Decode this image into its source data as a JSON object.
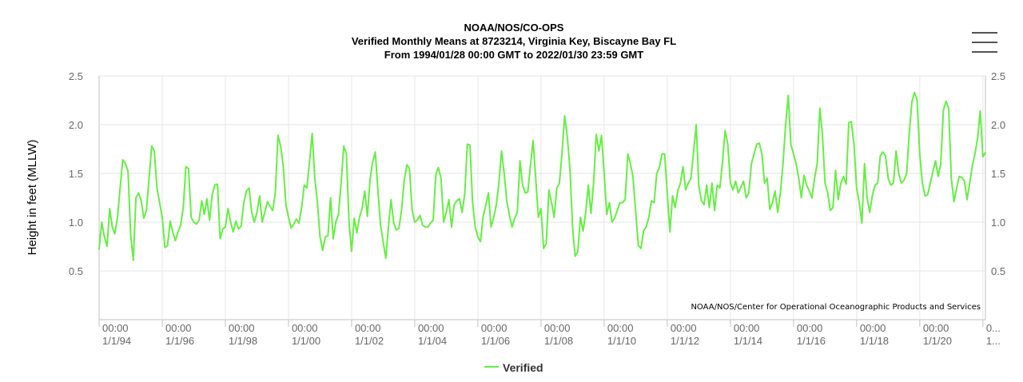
{
  "chart_data": {
    "type": "line",
    "title_lines": [
      "NOAA/NOS/CO-OPS",
      "Verified Monthly Means at 8723214, Virginia Key, Biscayne Bay FL",
      "From 1994/01/28 00:00 GMT to 2022/01/30 23:59 GMT"
    ],
    "ylabel": "Height in feet (MLLW)",
    "ylim": [
      0,
      2.5
    ],
    "yticks": [
      0.5,
      1.0,
      1.5,
      2.0,
      2.5
    ],
    "ytick_labels": [
      "0.5",
      "1.0",
      "1.5",
      "2.0",
      "2.5"
    ],
    "xlim": [
      1994,
      2022.08
    ],
    "xticks": [
      1994,
      1996,
      1998,
      2000,
      2002,
      2004,
      2006,
      2008,
      2010,
      2012,
      2014,
      2016,
      2018,
      2020,
      2022
    ],
    "xtick_labels": [
      [
        "00:00",
        "1/1/94"
      ],
      [
        "00:00",
        "1/1/96"
      ],
      [
        "00:00",
        "1/1/98"
      ],
      [
        "00:00",
        "1/1/00"
      ],
      [
        "00:00",
        "1/1/02"
      ],
      [
        "00:00",
        "1/1/04"
      ],
      [
        "00:00",
        "1/1/06"
      ],
      [
        "00:00",
        "1/1/08"
      ],
      [
        "00:00",
        "1/1/10"
      ],
      [
        "00:00",
        "1/1/12"
      ],
      [
        "00:00",
        "1/1/14"
      ],
      [
        "00:00",
        "1/1/16"
      ],
      [
        "00:00",
        "1/1/18"
      ],
      [
        "00:00",
        "1/1/20"
      ],
      [
        "0...",
        "1..."
      ]
    ],
    "credit": "NOAA/NOS/Center for Operational Oceanographic Products and Services",
    "series": [
      {
        "name": "Verified",
        "color": "#66ee44",
        "x_start": 1994.0,
        "x_step": 0.08333,
        "values": [
          0.72,
          1.0,
          0.85,
          0.75,
          1.14,
          0.95,
          0.88,
          1.05,
          1.35,
          1.64,
          1.6,
          1.52,
          0.87,
          0.61,
          1.25,
          1.3,
          1.22,
          1.04,
          1.12,
          1.45,
          1.78,
          1.73,
          1.35,
          1.2,
          1.05,
          0.74,
          0.76,
          1.01,
          0.9,
          0.81,
          0.9,
          0.97,
          1.15,
          1.57,
          1.55,
          1.05,
          1.0,
          0.98,
          1.02,
          1.22,
          1.08,
          1.24,
          1.02,
          1.28,
          1.38,
          1.39,
          0.83,
          0.93,
          0.95,
          1.14,
          1.0,
          0.9,
          1.01,
          0.93,
          0.96,
          1.2,
          1.32,
          1.35,
          1.1,
          1.0,
          1.1,
          1.27,
          1.0,
          1.1,
          1.21,
          1.16,
          1.12,
          1.3,
          1.89,
          1.78,
          1.58,
          1.18,
          1.05,
          0.94,
          0.98,
          1.03,
          0.99,
          1.15,
          1.38,
          1.35,
          1.62,
          1.91,
          1.45,
          1.2,
          0.85,
          0.71,
          0.85,
          0.86,
          1.25,
          0.83,
          1.0,
          1.08,
          1.4,
          1.78,
          1.7,
          1.0,
          0.7,
          1.04,
          0.89,
          1.05,
          1.14,
          1.32,
          1.06,
          1.44,
          1.62,
          1.72,
          1.32,
          0.97,
          0.8,
          0.63,
          0.95,
          1.23,
          0.99,
          0.92,
          0.94,
          1.13,
          1.43,
          1.59,
          1.55,
          1.13,
          1.0,
          1.02,
          1.07,
          0.97,
          0.95,
          0.95,
          0.99,
          1.02,
          1.49,
          1.56,
          1.45,
          1.0,
          1.1,
          1.23,
          0.95,
          1.18,
          1.22,
          1.24,
          1.1,
          1.29,
          1.8,
          1.79,
          1.2,
          0.95,
          0.85,
          0.8,
          1.06,
          1.17,
          1.3,
          0.95,
          1.05,
          1.18,
          1.4,
          1.73,
          1.5,
          1.22,
          1.07,
          0.95,
          1.04,
          1.1,
          1.63,
          1.38,
          1.3,
          1.31,
          1.58,
          1.84,
          1.45,
          1.05,
          1.14,
          0.73,
          0.78,
          1.33,
          1.2,
          1.05,
          1.35,
          1.4,
          1.71,
          2.09,
          1.88,
          1.55,
          0.95,
          0.65,
          0.7,
          1.05,
          0.91,
          1.1,
          1.38,
          1.09,
          1.4,
          1.9,
          1.73,
          1.89,
          1.5,
          1.08,
          1.2,
          1.0,
          1.04,
          1.12,
          1.2,
          1.2,
          1.23,
          1.7,
          1.6,
          1.46,
          1.1,
          0.76,
          0.73,
          0.91,
          0.95,
          1.05,
          1.22,
          1.2,
          1.5,
          1.56,
          1.7,
          1.7,
          1.3,
          0.9,
          1.27,
          1.15,
          1.32,
          1.4,
          1.57,
          1.33,
          1.4,
          1.45,
          1.72,
          2.0,
          1.37,
          1.22,
          1.18,
          1.38,
          1.15,
          1.4,
          1.12,
          1.38,
          1.35,
          1.62,
          1.94,
          1.8,
          1.4,
          1.33,
          1.42,
          1.3,
          1.36,
          1.42,
          1.25,
          1.3,
          1.6,
          1.7,
          1.8,
          1.81,
          1.7,
          1.4,
          1.45,
          1.13,
          1.2,
          1.32,
          1.1,
          1.3,
          1.6,
          2.0,
          2.3,
          1.8,
          1.7,
          1.6,
          1.45,
          1.25,
          1.48,
          1.38,
          1.32,
          1.25,
          1.45,
          1.6,
          2.17,
          1.9,
          1.4,
          1.3,
          1.12,
          1.15,
          1.53,
          1.23,
          1.4,
          1.47,
          1.39,
          2.02,
          2.03,
          1.8,
          1.35,
          1.2,
          0.99,
          1.6,
          1.25,
          1.1,
          1.28,
          1.38,
          1.4,
          1.68,
          1.72,
          1.68,
          1.45,
          1.38,
          1.4,
          1.73,
          1.5,
          1.4,
          1.43,
          1.5,
          1.9,
          2.23,
          2.33,
          2.25,
          1.7,
          1.4,
          1.27,
          1.28,
          1.4,
          1.52,
          1.63,
          1.47,
          1.6,
          2.15,
          2.24,
          2.17,
          1.45,
          1.21,
          1.35,
          1.47,
          1.46,
          1.42,
          1.23,
          1.4,
          1.58,
          1.7,
          1.86,
          2.14,
          1.67,
          1.72
        ]
      }
    ],
    "legend": "bottom-center"
  }
}
